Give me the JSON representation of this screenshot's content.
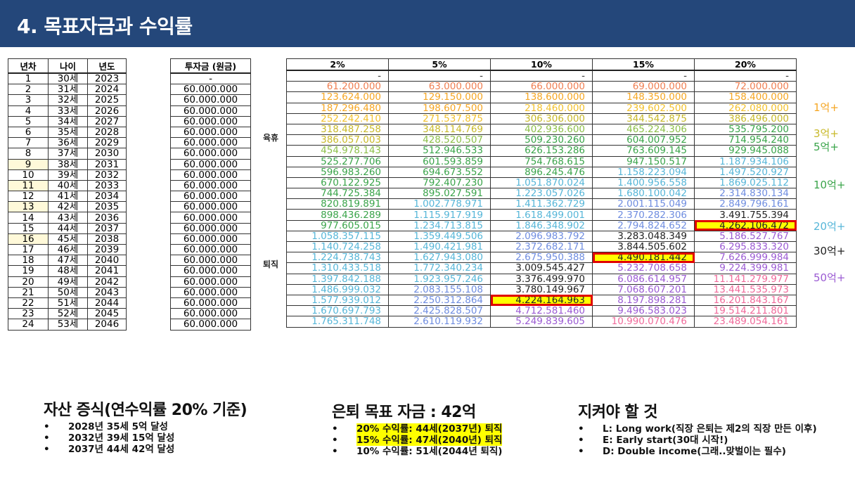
{
  "header": {
    "title": "4. 목표자금과 수익률"
  },
  "left_table": {
    "headers": [
      "년차",
      "나이",
      "년도"
    ],
    "rows": [
      [
        "1",
        "30세",
        "2023"
      ],
      [
        "2",
        "31세",
        "2024"
      ],
      [
        "3",
        "32세",
        "2025"
      ],
      [
        "4",
        "33세",
        "2026"
      ],
      [
        "5",
        "34세",
        "2027"
      ],
      [
        "6",
        "35세",
        "2028"
      ],
      [
        "7",
        "36세",
        "2029"
      ],
      [
        "8",
        "37세",
        "2030"
      ],
      [
        "9",
        "38세",
        "2031"
      ],
      [
        "10",
        "39세",
        "2032"
      ],
      [
        "11",
        "40세",
        "2033"
      ],
      [
        "12",
        "41세",
        "2034"
      ],
      [
        "13",
        "42세",
        "2035"
      ],
      [
        "14",
        "43세",
        "2036"
      ],
      [
        "15",
        "44세",
        "2037"
      ],
      [
        "16",
        "45세",
        "2038"
      ],
      [
        "17",
        "46세",
        "2039"
      ],
      [
        "18",
        "47세",
        "2040"
      ],
      [
        "19",
        "48세",
        "2041"
      ],
      [
        "20",
        "49세",
        "2042"
      ],
      [
        "21",
        "50세",
        "2043"
      ],
      [
        "22",
        "51세",
        "2044"
      ],
      [
        "23",
        "52세",
        "2045"
      ],
      [
        "24",
        "53세",
        "2046"
      ]
    ],
    "highlight_years": [
      "9",
      "11",
      "13",
      "16"
    ]
  },
  "invest_table": {
    "header": "투자금 (원금)",
    "first": "-",
    "value": "60.000.000"
  },
  "side_labels": {
    "childcare": "육휴",
    "retire": "퇴직"
  },
  "returns_table": {
    "headers": [
      "2%",
      "5%",
      "10%",
      "15%",
      "20%"
    ],
    "rows": [
      [
        "-",
        "-",
        "-",
        "-",
        "-"
      ],
      [
        "61.200.000",
        "63.000.000",
        "66.000.000",
        "69.000.000",
        "72.000.000"
      ],
      [
        "123.624.000",
        "129.150.000",
        "138.600.000",
        "148.350.000",
        "158.400.000"
      ],
      [
        "187.296.480",
        "198.607.500",
        "218.460.000",
        "239.602.500",
        "262.080.000"
      ],
      [
        "252.242.410",
        "271.537.875",
        "306.306.000",
        "344.542.875",
        "386.496.000"
      ],
      [
        "318.487.258",
        "348.114.769",
        "402.936.600",
        "465.224.306",
        "535.795.200"
      ],
      [
        "386.057.003",
        "428.520.507",
        "509.230.260",
        "604.007.952",
        "714.954.240"
      ],
      [
        "454.978.143",
        "512.946.533",
        "626.153.286",
        "763.609.145",
        "929.945.088"
      ],
      [
        "525.277.706",
        "601.593.859",
        "754.768.615",
        "947.150.517",
        "1.187.934.106"
      ],
      [
        "596.983.260",
        "694.673.552",
        "896.245.476",
        "1.158.223.094",
        "1.497.520.927"
      ],
      [
        "670.122.925",
        "792.407.230",
        "1.051.870.024",
        "1.400.956.558",
        "1.869.025.112"
      ],
      [
        "744.725.384",
        "895.027.591",
        "1.223.057.026",
        "1.680.100.042",
        "2.314.830.134"
      ],
      [
        "820.819.891",
        "1.002.778.971",
        "1.411.362.729",
        "2.001.115.049",
        "2.849.796.161"
      ],
      [
        "898.436.289",
        "1.115.917.919",
        "1.618.499.001",
        "2.370.282.306",
        "3.491.755.394"
      ],
      [
        "977.605.015",
        "1.234.713.815",
        "1.846.348.902",
        "2.794.824.652",
        "4.262.106.472"
      ],
      [
        "1.058.357.115",
        "1.359.449.506",
        "2.096.983.792",
        "3.283.048.349",
        "5.186.527.767"
      ],
      [
        "1.140.724.258",
        "1.490.421.981",
        "2.372.682.171",
        "3.844.505.602",
        "6.295.833.320"
      ],
      [
        "1.224.738.743",
        "1.627.943.080",
        "2.675.950.388",
        "4.490.181.442",
        "7.626.999.984"
      ],
      [
        "1.310.433.518",
        "1.772.340.234",
        "3.009.545.427",
        "5.232.708.658",
        "9.224.399.981"
      ],
      [
        "1.397.842.188",
        "1.923.957.246",
        "3.376.499.970",
        "6.086.614.957",
        "11.141.279.977"
      ],
      [
        "1.486.999.032",
        "2.083.155.108",
        "3.780.149.967",
        "7.068.607.201",
        "13.441.535.973"
      ],
      [
        "1.577.939.012",
        "2.250.312.864",
        "4.224.164.963",
        "8.197.898.281",
        "16.201.843.167"
      ],
      [
        "1.670.697.793",
        "2.425.828.507",
        "4.712.581.460",
        "9.496.583.023",
        "19.514.211.801"
      ],
      [
        "1.765.311.748",
        "2.610.119.932",
        "5.249.839.605",
        "10.990.070.476",
        "23.489.054.161"
      ]
    ],
    "boxed_cells": [
      [
        14,
        4
      ],
      [
        17,
        3
      ],
      [
        21,
        2
      ]
    ],
    "tier_colors": {
      "t0": "#f07f52",
      "t1": "#f5a623",
      "t2": "#f2c12e",
      "t3": "#c8b92a",
      "t4": "#8dbf4a",
      "t5": "#3aa44a",
      "t6": "#56b6d8",
      "t7": "#6f8de0",
      "t8": "#222222",
      "t9": "#9b5bd3",
      "t10": "#f06a9a"
    }
  },
  "milestones": [
    {
      "text": "1억+",
      "color": "#f5a623"
    },
    {
      "text": "3억+",
      "color": "#c8b92a"
    },
    {
      "text": "5억+",
      "color": "#3aa44a"
    },
    {
      "text": "10억+",
      "color": "#3aa44a"
    },
    {
      "text": "20억+",
      "color": "#56b6d8"
    },
    {
      "text": "30억+",
      "color": "#222222"
    },
    {
      "text": "50억+",
      "color": "#9b5bd3"
    }
  ],
  "sections": {
    "assets": {
      "title": "자산 증식(연수익률 20% 기준)",
      "items": [
        "2028년 35세 5억 달성",
        "2032년 39세 15억 달성",
        "2037년 44세 42억 달성"
      ]
    },
    "retire_goal": {
      "title": "은퇴 목표 자금 : 42억",
      "items": [
        "20% 수익률: 44세(2037년) 퇴직",
        "15% 수익률: 47세(2040년) 퇴직",
        "10% 수익률: 51세(2044년 퇴직)"
      ]
    },
    "keep": {
      "title": "지켜야 할 것",
      "items": [
        "L: Long work(직장 은퇴는 제2의 직장 만든 이후)",
        "E: Early start(30대 시작!)",
        "D: Double income(그래..맞벌이는 필수)"
      ]
    }
  }
}
